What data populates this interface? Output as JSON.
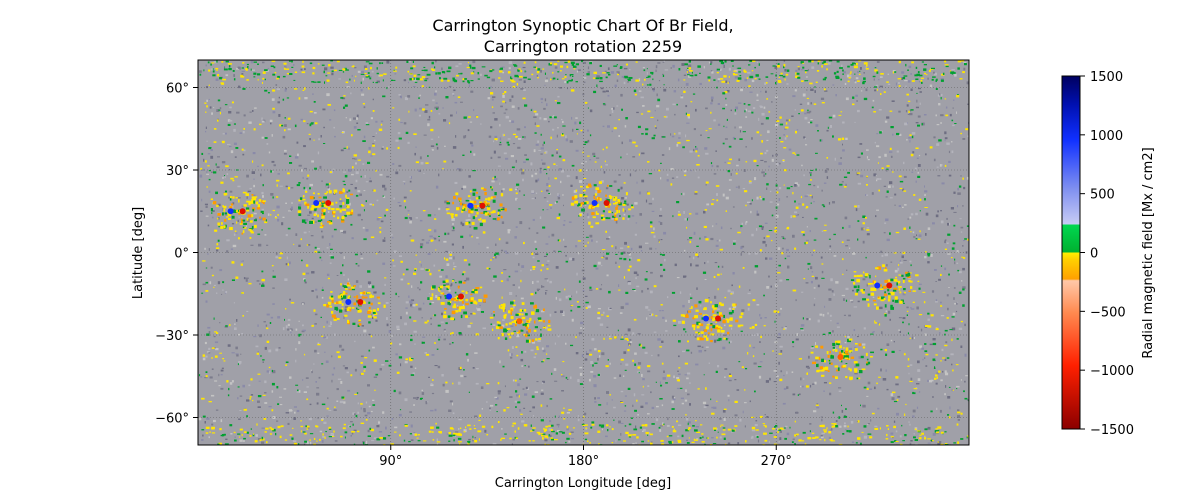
{
  "chart_data": {
    "type": "heatmap",
    "title": "Carrington Synoptic Chart Of Br Field,",
    "subtitle": "Carrington rotation 2259",
    "xlabel": "Carrington Longitude [deg]",
    "ylabel": "Latitude [deg]",
    "xlim": [
      0,
      360
    ],
    "ylim": [
      -70,
      70
    ],
    "x_ticks": [
      90,
      180,
      270
    ],
    "x_tick_labels": [
      "90°",
      "180°",
      "270°"
    ],
    "y_ticks": [
      60,
      30,
      0,
      -30,
      -60
    ],
    "y_tick_labels": [
      "60°",
      "30°",
      "0°",
      "−30°",
      "−60°"
    ],
    "grid": true,
    "colorbar": {
      "label": "Radial magnetic field [Mx / cm2]",
      "range": [
        -1500,
        1500
      ],
      "ticks": [
        1500,
        1000,
        500,
        0,
        -500,
        -1000,
        -1500
      ],
      "tick_labels": [
        "1500",
        "1000",
        "500",
        "0",
        "−500",
        "−1000",
        "−1500"
      ],
      "colors": {
        "strong_positive": "#000066",
        "positive": "#0033ff",
        "weak_positive": "#b8bff5",
        "near_zero_positive": "#00c040",
        "near_zero_negative": "#ffe600",
        "weak_negative": "#ffc8a8",
        "negative": "#ff4400",
        "strong_negative": "#8b0000",
        "background": "#a0a0a8"
      }
    },
    "active_regions": [
      {
        "lon": 58,
        "lat": 18,
        "polarity": "mixed"
      },
      {
        "lon": 130,
        "lat": 17,
        "polarity": "mixed"
      },
      {
        "lon": 120,
        "lat": -16,
        "polarity": "mixed"
      },
      {
        "lon": 73,
        "lat": -18,
        "polarity": "mixed"
      },
      {
        "lon": 320,
        "lat": -12,
        "polarity": "mixed"
      },
      {
        "lon": 240,
        "lat": -24,
        "polarity": "mixed"
      },
      {
        "lon": 18,
        "lat": 15,
        "polarity": "mixed"
      },
      {
        "lon": 188,
        "lat": 18,
        "polarity": "mixed"
      },
      {
        "lon": 150,
        "lat": -25,
        "polarity": "negative"
      },
      {
        "lon": 300,
        "lat": -38,
        "polarity": "negative"
      }
    ]
  }
}
